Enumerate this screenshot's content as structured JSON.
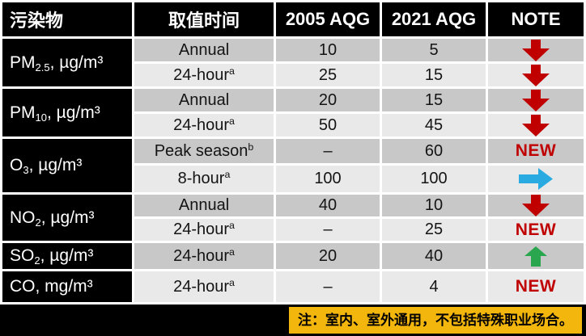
{
  "colors": {
    "header_bg": "#000000",
    "header_text": "#ffffff",
    "row_dark": "#c8c8c8",
    "row_light": "#e9e9e9",
    "red": "#c00000",
    "blue": "#29abe2",
    "green": "#2aa64f",
    "yellow": "#f2b60d"
  },
  "labels": {
    "new": "NEW"
  },
  "chart_data": {
    "type": "table",
    "columns": [
      "污染物",
      "取值时间",
      "2005 AQG",
      "2021 AQG",
      "NOTE"
    ],
    "pollutants": [
      {
        "name": "PM2.5, µg/m³",
        "name_html": "PM<sub>2.5</sub>, µg/m³",
        "rowspan": 2
      },
      {
        "name": "PM10, µg/m³",
        "name_html": "PM<sub>10</sub>, µg/m³",
        "rowspan": 2
      },
      {
        "name": "O3, µg/m³",
        "name_html": "O<sub>3</sub>, µg/m³",
        "rowspan": 2
      },
      {
        "name": "NO2, µg/m³",
        "name_html": "NO<sub>2</sub>, µg/m³",
        "rowspan": 2
      },
      {
        "name": "SO2, µg/m³",
        "name_html": "SO<sub>2</sub>, µg/m³",
        "rowspan": 1
      },
      {
        "name": "CO, mg/m³",
        "name_html": "CO, mg/m³",
        "rowspan": 1
      }
    ],
    "rows": [
      {
        "pollutant": "PM2.5, µg/m³",
        "time": "Annual",
        "time_html": "Annual",
        "aqg_2005": "10",
        "aqg_2021": "5",
        "note": "decrease"
      },
      {
        "pollutant": "PM2.5, µg/m³",
        "time": "24-hour(a)",
        "time_html": "24-hour<sup>a</sup>",
        "aqg_2005": "25",
        "aqg_2021": "15",
        "note": "decrease"
      },
      {
        "pollutant": "PM10, µg/m³",
        "time": "Annual",
        "time_html": "Annual",
        "aqg_2005": "20",
        "aqg_2021": "15",
        "note": "decrease"
      },
      {
        "pollutant": "PM10, µg/m³",
        "time": "24-hour(a)",
        "time_html": "24-hour<sup>a</sup>",
        "aqg_2005": "50",
        "aqg_2021": "45",
        "note": "decrease"
      },
      {
        "pollutant": "O3, µg/m³",
        "time": "Peak season(b)",
        "time_html": "Peak season<sup>b</sup>",
        "aqg_2005": "–",
        "aqg_2021": "60",
        "note": "new"
      },
      {
        "pollutant": "O3, µg/m³",
        "time": "8-hour(a)",
        "time_html": "8-hour<sup>a</sup>",
        "aqg_2005": "100",
        "aqg_2021": "100",
        "note": "unchanged"
      },
      {
        "pollutant": "NO2, µg/m³",
        "time": "Annual",
        "time_html": "Annual",
        "aqg_2005": "40",
        "aqg_2021": "10",
        "note": "decrease"
      },
      {
        "pollutant": "NO2, µg/m³",
        "time": "24-hour(a)",
        "time_html": "24-hour<sup>a</sup>",
        "aqg_2005": "–",
        "aqg_2021": "25",
        "note": "new"
      },
      {
        "pollutant": "SO2, µg/m³",
        "time": "24-hour(a)",
        "time_html": "24-hour<sup>a</sup>",
        "aqg_2005": "20",
        "aqg_2021": "40",
        "note": "increase"
      },
      {
        "pollutant": "CO, mg/m³",
        "time": "24-hour(a)",
        "time_html": "24-hour<sup>a</sup>",
        "aqg_2005": "–",
        "aqg_2021": "4",
        "note": "new"
      }
    ],
    "footnote": "注：室内、室外通用，不包括特殊职业场合。"
  }
}
